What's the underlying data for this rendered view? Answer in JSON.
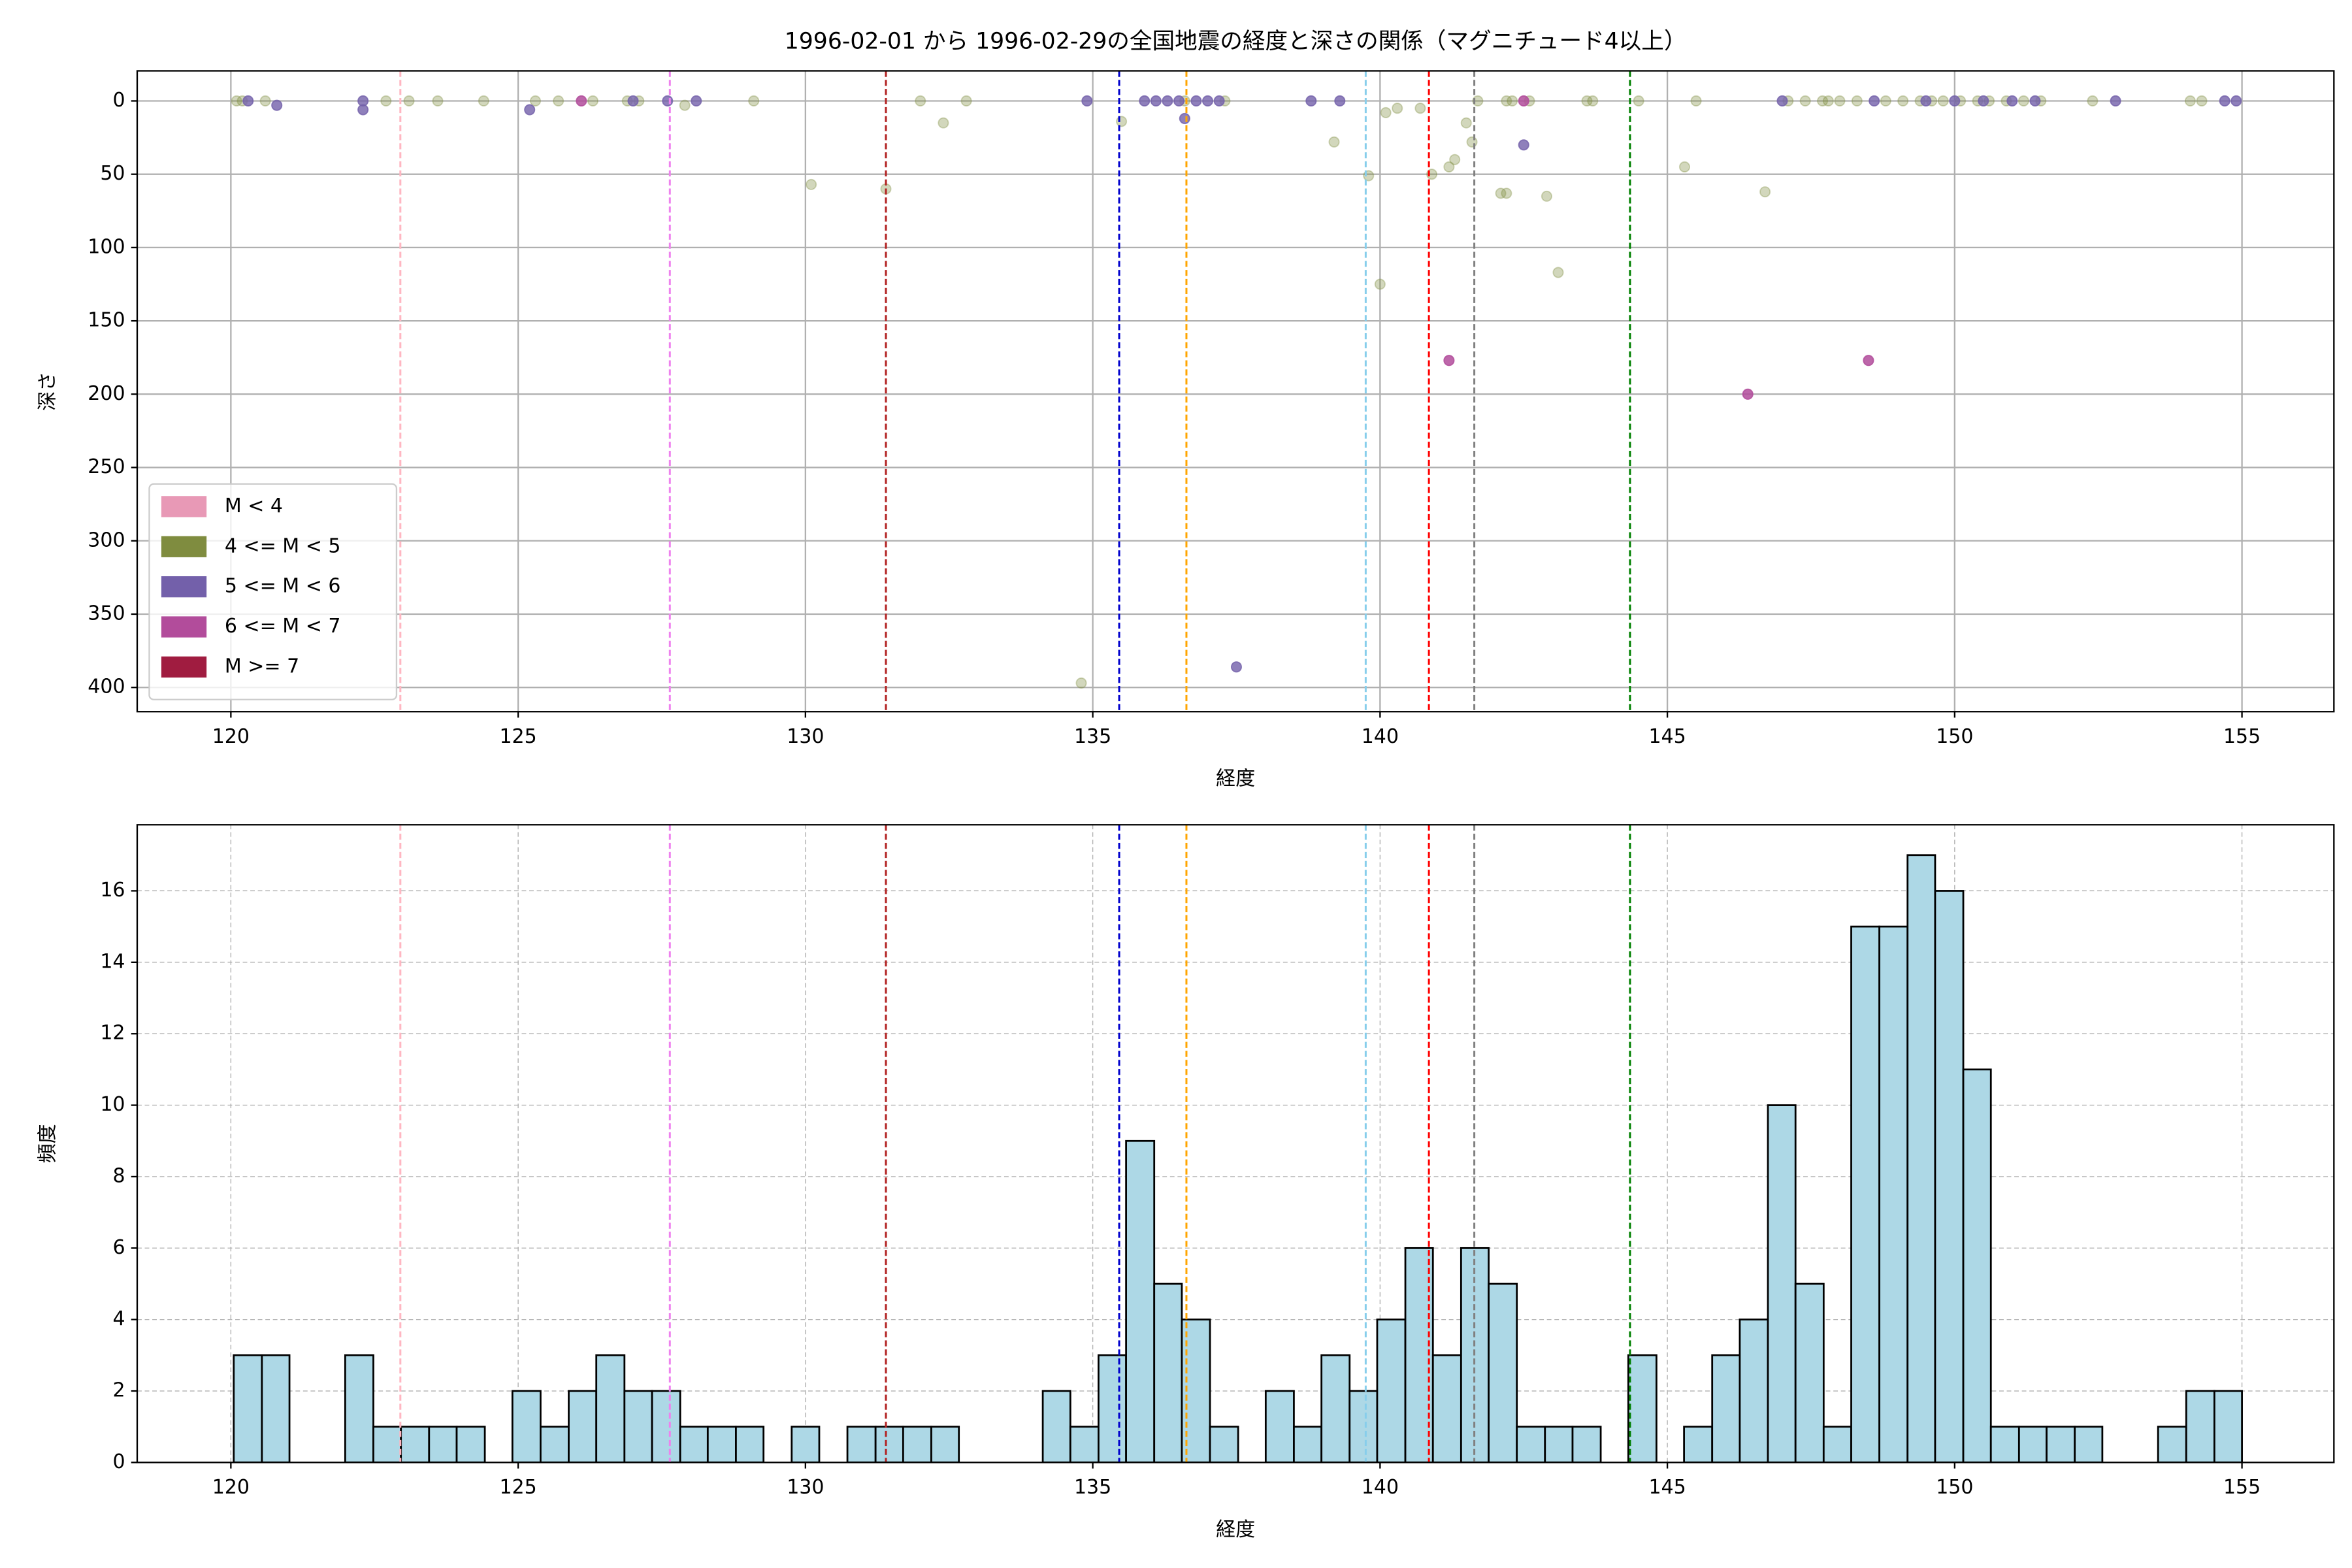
{
  "chart_data": [
    {
      "type": "scatter",
      "title": "1996-02-01 から 1996-02-29の全国地震の経度と深さの関係（マグニチュード4以上）",
      "xlabel": "経度",
      "ylabel": "深さ",
      "xlim": [
        118.37,
        156.6
      ],
      "xticks": [
        120,
        125,
        130,
        135,
        140,
        145,
        150,
        155
      ],
      "ylim": [
        -20.5,
        416.5
      ],
      "yticks": [
        0,
        50,
        100,
        150,
        200,
        250,
        300,
        350,
        400
      ],
      "invert_y": true,
      "grid": true,
      "grid_style": "solid",
      "legend": "lower left",
      "vlines": [
        {
          "x": 122.95,
          "color": "#ffb6c1"
        },
        {
          "x": 127.64,
          "color": "#ee82ee"
        },
        {
          "x": 131.4,
          "color": "#b22222"
        },
        {
          "x": 135.46,
          "color": "#0000cd"
        },
        {
          "x": 136.63,
          "color": "#ffa500"
        },
        {
          "x": 139.75,
          "color": "#87ceeb"
        },
        {
          "x": 140.85,
          "color": "#ff0000"
        },
        {
          "x": 141.64,
          "color": "#808080"
        },
        {
          "x": 144.35,
          "color": "#008000"
        }
      ],
      "series": [
        {
          "name": "M < 4",
          "color": "#e899b6",
          "alpha": 0.6,
          "x": [],
          "values": []
        },
        {
          "name": "4 <= M < 5",
          "color": "#7f8c3f",
          "alpha": 0.35,
          "x": [
            120.1,
            120.2,
            120.6,
            122.7,
            123.1,
            123.6,
            124.4,
            125.3,
            125.7,
            126.3,
            126.9,
            127.1,
            127.9,
            129.1,
            130.1,
            131.4,
            132.0,
            132.4,
            132.8,
            134.8,
            135.5,
            136.6,
            137.3,
            139.2,
            139.8,
            140.0,
            140.1,
            140.3,
            140.7,
            140.9,
            141.2,
            141.3,
            141.5,
            141.6,
            141.7,
            142.1,
            142.2,
            142.2,
            142.3,
            142.6,
            142.9,
            143.1,
            143.6,
            143.7,
            144.5,
            145.3,
            145.5,
            146.7,
            147.1,
            147.4,
            147.7,
            147.8,
            148.0,
            148.3,
            148.8,
            149.1,
            149.4,
            149.6,
            149.8,
            150.1,
            150.4,
            150.6,
            150.9,
            151.2,
            151.5,
            152.4,
            154.1,
            154.3
          ],
          "values": [
            0,
            0,
            0,
            0,
            0,
            0,
            0,
            0,
            0,
            0,
            0,
            0,
            3,
            0,
            57,
            60,
            0,
            15,
            0,
            397,
            14,
            0,
            0,
            28,
            51,
            125,
            8,
            5,
            5,
            50,
            45,
            40,
            15,
            28,
            0,
            63,
            63,
            0,
            0,
            0,
            65,
            117,
            0,
            0,
            0,
            45,
            0,
            62,
            0,
            0,
            0,
            0,
            0,
            0,
            0,
            0,
            0,
            0,
            0,
            0,
            0,
            0,
            0,
            0,
            0,
            0,
            0,
            0
          ]
        },
        {
          "name": "5 <= M < 6",
          "color": "#7360aa",
          "alpha": 0.8,
          "x": [
            120.3,
            120.8,
            122.3,
            122.3,
            125.2,
            127.0,
            127.6,
            128.1,
            134.9,
            135.9,
            136.1,
            136.3,
            136.5,
            136.6,
            136.8,
            137.0,
            137.2,
            137.5,
            138.8,
            139.3,
            142.5,
            147.0,
            148.6,
            149.5,
            150.0,
            150.5,
            151.0,
            151.4,
            152.8,
            154.7,
            154.9
          ],
          "values": [
            0,
            3,
            0,
            6,
            6,
            0,
            0,
            0,
            0,
            0,
            0,
            0,
            0,
            12,
            0,
            0,
            0,
            386,
            0,
            0,
            30,
            0,
            0,
            0,
            0,
            0,
            0,
            0,
            0,
            0,
            0
          ]
        },
        {
          "name": "6 <= M < 7",
          "color": "#b24c9b",
          "alpha": 0.85,
          "x": [
            126.1,
            141.2,
            142.5,
            146.4,
            148.5
          ],
          "values": [
            0,
            177,
            0,
            200,
            177
          ]
        },
        {
          "name": "M >= 7",
          "color": "#a01c40",
          "alpha": 0.9,
          "x": [],
          "values": []
        }
      ]
    },
    {
      "type": "histogram",
      "xlabel": "経度",
      "ylabel": "頻度",
      "xlim": [
        118.37,
        156.6
      ],
      "xticks": [
        120,
        125,
        130,
        135,
        140,
        145,
        150,
        155
      ],
      "ylim": [
        0,
        17.85
      ],
      "yticks": [
        0,
        2,
        4,
        6,
        8,
        10,
        12,
        14,
        16
      ],
      "grid": true,
      "grid_style": "dashed",
      "color": "#add8e6",
      "edgecolor": "#000000",
      "vlines": [
        {
          "x": 122.95,
          "color": "#ffb6c1"
        },
        {
          "x": 127.64,
          "color": "#ee82ee"
        },
        {
          "x": 131.4,
          "color": "#b22222"
        },
        {
          "x": 135.46,
          "color": "#0000cd"
        },
        {
          "x": 136.63,
          "color": "#ffa500"
        },
        {
          "x": 139.75,
          "color": "#87ceeb"
        },
        {
          "x": 140.85,
          "color": "#ff0000"
        },
        {
          "x": 141.64,
          "color": "#808080"
        },
        {
          "x": 144.35,
          "color": "#008000"
        }
      ],
      "bins": [
        120.05,
        120.54,
        121.02,
        121.51,
        121.99,
        122.48,
        122.96,
        123.45,
        123.93,
        124.42,
        124.9,
        125.39,
        125.88,
        126.36,
        126.85,
        127.33,
        127.82,
        128.3,
        128.79,
        129.27,
        129.76,
        130.24,
        130.73,
        131.22,
        131.7,
        132.19,
        132.67,
        133.16,
        133.64,
        134.13,
        134.61,
        135.1,
        135.58,
        136.07,
        136.55,
        137.04,
        137.53,
        138.01,
        138.5,
        138.98,
        139.47,
        139.95,
        140.44,
        140.92,
        141.41,
        141.89,
        142.38,
        142.87,
        143.35,
        143.84,
        144.32,
        144.81,
        145.29,
        145.78,
        146.26,
        146.75,
        147.23,
        147.72,
        148.2,
        148.69,
        149.18,
        149.66,
        150.15,
        150.63,
        151.12,
        151.6,
        152.09,
        152.57,
        153.06,
        153.54,
        154.03,
        154.52,
        155.0
      ],
      "values": [
        3,
        3,
        0,
        0,
        3,
        1,
        1,
        1,
        1,
        0,
        2,
        1,
        2,
        3,
        2,
        2,
        1,
        1,
        1,
        0,
        1,
        0,
        1,
        1,
        1,
        1,
        0,
        0,
        0,
        2,
        1,
        3,
        9,
        5,
        4,
        1,
        0,
        2,
        1,
        3,
        2,
        4,
        6,
        3,
        6,
        5,
        1,
        1,
        1,
        0,
        3,
        0,
        1,
        3,
        4,
        10,
        5,
        1,
        15,
        15,
        17,
        16,
        11,
        1,
        1,
        1,
        1,
        0,
        0,
        1,
        2,
        2
      ]
    }
  ]
}
